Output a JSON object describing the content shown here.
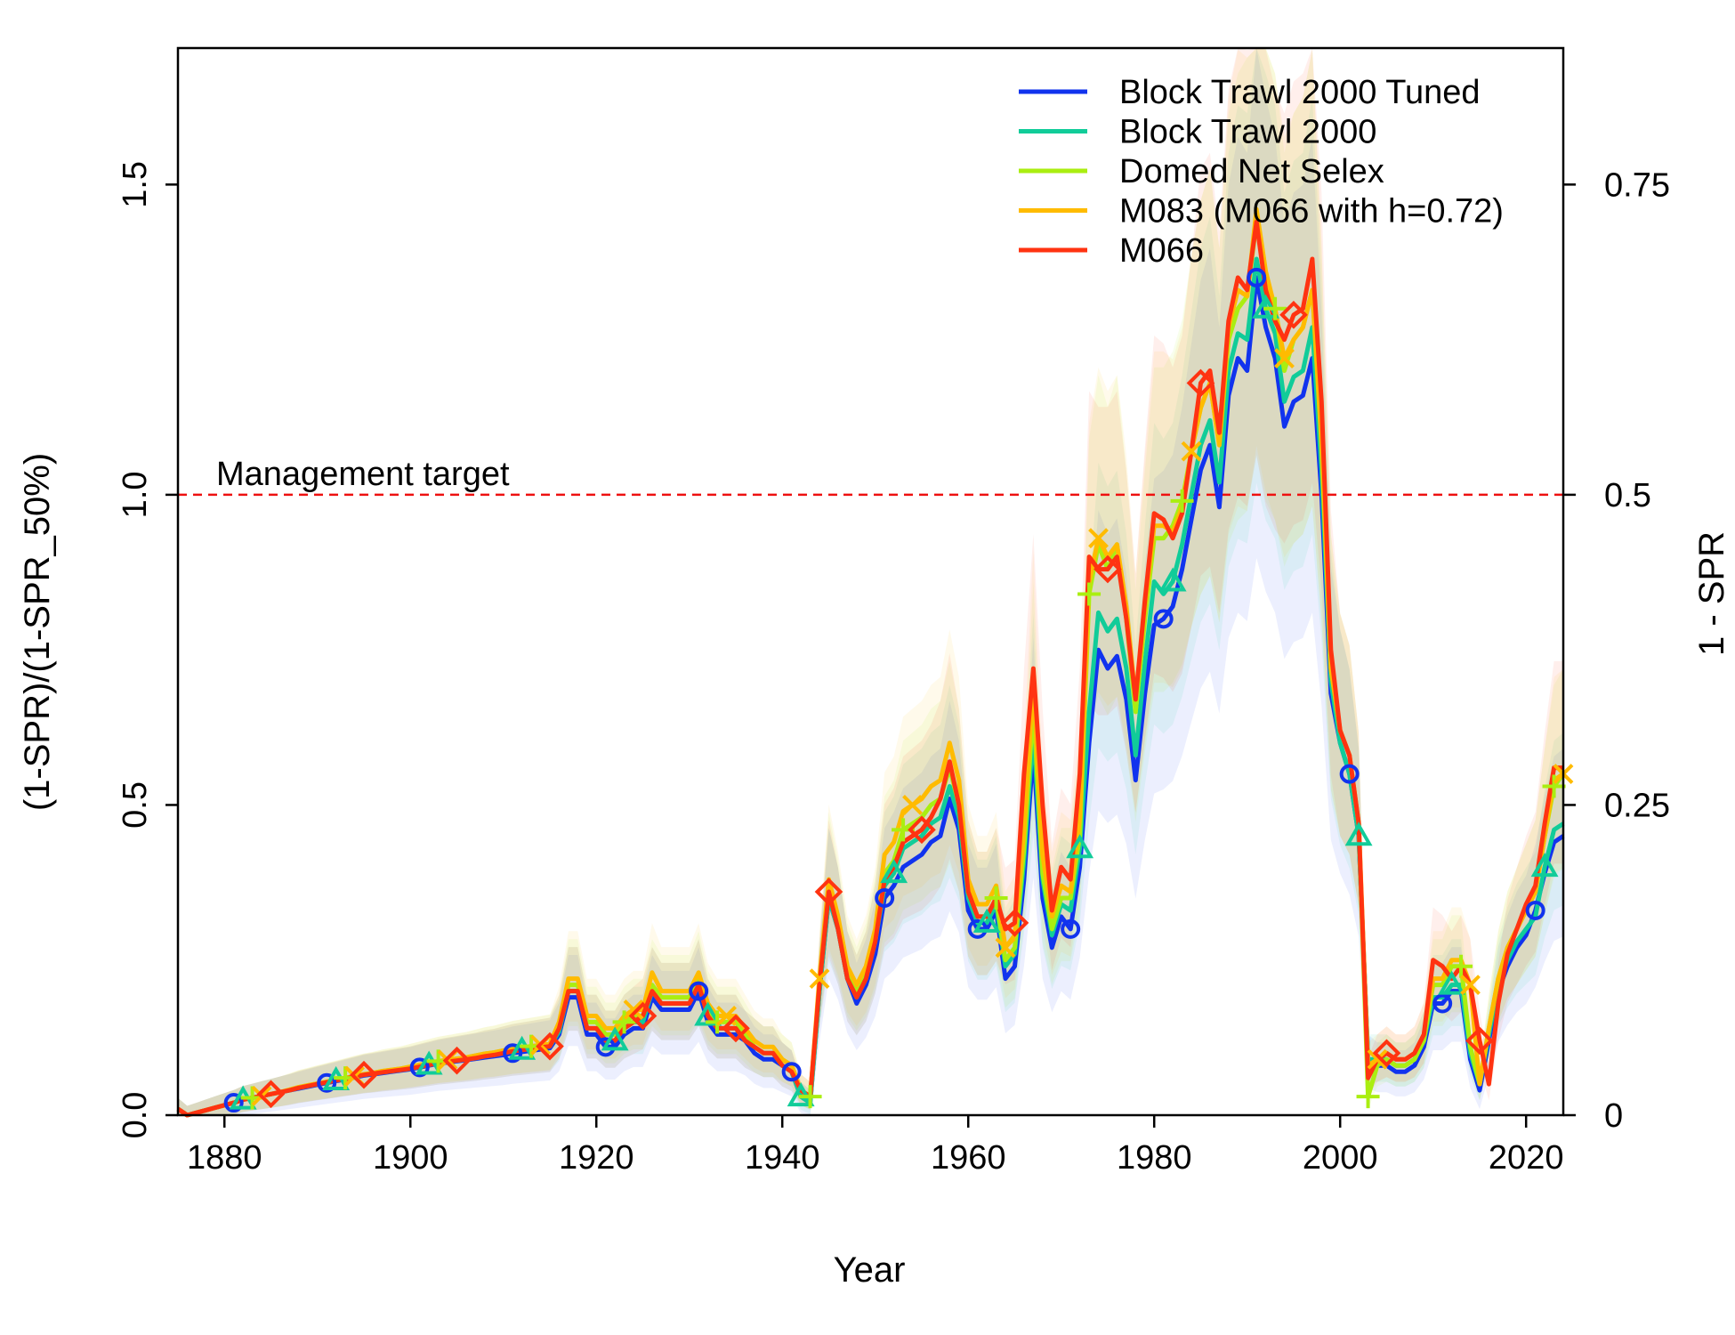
{
  "chart_data": {
    "type": "line",
    "xlabel": "Year",
    "ylabel": "(1-SPR)/(1-SPR_50%)",
    "ylabel_right": "1 - SPR",
    "xlim": [
      1875,
      2024
    ],
    "ylim": [
      0,
      1.72
    ],
    "x_ticks": [
      1880,
      1900,
      1920,
      1940,
      1960,
      1980,
      2000,
      2020
    ],
    "y_ticks": [
      0.0,
      0.5,
      1.0,
      1.5
    ],
    "y_tick_labels": [
      "0.0",
      "0.5",
      "1.0",
      "1.5"
    ],
    "y2_ticks": [
      0,
      0.25,
      0.5,
      0.75
    ],
    "y2_tick_labels": [
      "0",
      "0.25",
      "0.5",
      "0.75"
    ],
    "reference_line": {
      "y": 1.0,
      "label": "Management target",
      "color": "#ee1111"
    },
    "legend_position": "top-right",
    "x": [
      1875,
      1876,
      1877,
      1878,
      1879,
      1880,
      1881,
      1882,
      1883,
      1884,
      1885,
      1886,
      1887,
      1888,
      1889,
      1890,
      1891,
      1892,
      1893,
      1894,
      1895,
      1896,
      1897,
      1898,
      1899,
      1900,
      1901,
      1902,
      1903,
      1904,
      1905,
      1906,
      1907,
      1908,
      1909,
      1910,
      1911,
      1912,
      1913,
      1914,
      1915,
      1916,
      1917,
      1918,
      1919,
      1920,
      1921,
      1922,
      1923,
      1924,
      1925,
      1926,
      1927,
      1928,
      1929,
      1930,
      1931,
      1932,
      1933,
      1934,
      1935,
      1936,
      1937,
      1938,
      1939,
      1940,
      1941,
      1942,
      1943,
      1944,
      1945,
      1946,
      1947,
      1948,
      1949,
      1950,
      1951,
      1952,
      1953,
      1954,
      1955,
      1956,
      1957,
      1958,
      1959,
      1960,
      1961,
      1962,
      1963,
      1964,
      1965,
      1966,
      1967,
      1968,
      1969,
      1970,
      1971,
      1972,
      1973,
      1974,
      1975,
      1976,
      1977,
      1978,
      1979,
      1980,
      1981,
      1982,
      1983,
      1984,
      1985,
      1986,
      1987,
      1988,
      1989,
      1990,
      1991,
      1992,
      1993,
      1994,
      1995,
      1996,
      1997,
      1998,
      1999,
      2000,
      2001,
      2002,
      2003,
      2004,
      2005,
      2006,
      2007,
      2008,
      2009,
      2010,
      2011,
      2012,
      2013,
      2014,
      2015,
      2016,
      2017,
      2018,
      2019,
      2020,
      2021,
      2022,
      2023,
      2024
    ],
    "series": [
      {
        "name": "Block Trawl 2000 Tuned",
        "color": "#1133ee",
        "marker": "circle",
        "values": [
          0.01,
          0.0,
          0.004,
          0.008,
          0.012,
          0.016,
          0.02,
          0.025,
          0.028,
          0.031,
          0.034,
          0.037,
          0.04,
          0.043,
          0.046,
          0.049,
          0.052,
          0.055,
          0.058,
          0.061,
          0.064,
          0.066,
          0.068,
          0.07,
          0.072,
          0.074,
          0.077,
          0.08,
          0.083,
          0.085,
          0.087,
          0.089,
          0.091,
          0.093,
          0.095,
          0.097,
          0.1,
          0.102,
          0.104,
          0.106,
          0.108,
          0.13,
          0.19,
          0.19,
          0.13,
          0.13,
          0.11,
          0.11,
          0.13,
          0.14,
          0.14,
          0.19,
          0.17,
          0.17,
          0.17,
          0.17,
          0.2,
          0.15,
          0.13,
          0.13,
          0.13,
          0.12,
          0.1,
          0.09,
          0.09,
          0.08,
          0.07,
          0.03,
          0.02,
          0.2,
          0.35,
          0.3,
          0.22,
          0.18,
          0.21,
          0.26,
          0.35,
          0.37,
          0.4,
          0.41,
          0.42,
          0.44,
          0.45,
          0.51,
          0.46,
          0.33,
          0.3,
          0.3,
          0.33,
          0.22,
          0.24,
          0.38,
          0.59,
          0.35,
          0.27,
          0.32,
          0.3,
          0.4,
          0.6,
          0.75,
          0.72,
          0.74,
          0.67,
          0.54,
          0.68,
          0.79,
          0.8,
          0.82,
          0.88,
          0.96,
          1.04,
          1.08,
          0.98,
          1.16,
          1.22,
          1.2,
          1.35,
          1.27,
          1.22,
          1.11,
          1.15,
          1.16,
          1.22,
          1.0,
          0.68,
          0.6,
          0.55,
          0.45,
          0.09,
          0.08,
          0.08,
          0.07,
          0.07,
          0.08,
          0.11,
          0.18,
          0.18,
          0.2,
          0.2,
          0.09,
          0.04,
          0.12,
          0.2,
          0.24,
          0.27,
          0.29,
          0.33,
          0.39,
          0.44,
          0.45
        ]
      },
      {
        "name": "Block Trawl 2000",
        "color": "#11cc99",
        "marker": "triangle",
        "values": [
          0.01,
          0.0,
          0.004,
          0.008,
          0.012,
          0.016,
          0.02,
          0.025,
          0.028,
          0.031,
          0.034,
          0.037,
          0.04,
          0.044,
          0.047,
          0.05,
          0.053,
          0.056,
          0.059,
          0.062,
          0.065,
          0.067,
          0.069,
          0.071,
          0.073,
          0.075,
          0.078,
          0.081,
          0.084,
          0.086,
          0.088,
          0.09,
          0.092,
          0.095,
          0.097,
          0.1,
          0.103,
          0.105,
          0.107,
          0.109,
          0.111,
          0.135,
          0.2,
          0.2,
          0.14,
          0.14,
          0.12,
          0.12,
          0.14,
          0.15,
          0.15,
          0.2,
          0.18,
          0.18,
          0.18,
          0.18,
          0.21,
          0.16,
          0.14,
          0.14,
          0.14,
          0.12,
          0.11,
          0.1,
          0.1,
          0.08,
          0.07,
          0.03,
          0.02,
          0.2,
          0.35,
          0.3,
          0.22,
          0.19,
          0.22,
          0.28,
          0.37,
          0.39,
          0.43,
          0.44,
          0.45,
          0.47,
          0.48,
          0.53,
          0.48,
          0.35,
          0.31,
          0.31,
          0.34,
          0.24,
          0.26,
          0.41,
          0.62,
          0.38,
          0.29,
          0.34,
          0.33,
          0.43,
          0.65,
          0.81,
          0.78,
          0.8,
          0.72,
          0.58,
          0.73,
          0.86,
          0.84,
          0.86,
          0.92,
          1.0,
          1.08,
          1.12,
          1.02,
          1.2,
          1.26,
          1.25,
          1.38,
          1.3,
          1.26,
          1.15,
          1.19,
          1.2,
          1.27,
          1.04,
          0.7,
          0.6,
          0.55,
          0.45,
          0.09,
          0.09,
          0.09,
          0.08,
          0.08,
          0.09,
          0.12,
          0.19,
          0.19,
          0.21,
          0.21,
          0.1,
          0.05,
          0.13,
          0.21,
          0.25,
          0.28,
          0.3,
          0.32,
          0.4,
          0.46,
          0.47
        ]
      },
      {
        "name": "Domed Net Selex",
        "color": "#aaee11",
        "marker": "plus",
        "values": [
          0.01,
          0.0,
          0.004,
          0.008,
          0.012,
          0.016,
          0.02,
          0.025,
          0.028,
          0.031,
          0.034,
          0.037,
          0.041,
          0.045,
          0.048,
          0.051,
          0.054,
          0.057,
          0.06,
          0.063,
          0.066,
          0.068,
          0.071,
          0.073,
          0.075,
          0.078,
          0.081,
          0.084,
          0.087,
          0.089,
          0.091,
          0.093,
          0.096,
          0.099,
          0.101,
          0.104,
          0.107,
          0.109,
          0.111,
          0.113,
          0.115,
          0.14,
          0.21,
          0.21,
          0.15,
          0.15,
          0.13,
          0.13,
          0.15,
          0.16,
          0.16,
          0.21,
          0.19,
          0.19,
          0.19,
          0.19,
          0.22,
          0.17,
          0.15,
          0.15,
          0.15,
          0.13,
          0.11,
          0.1,
          0.1,
          0.09,
          0.08,
          0.04,
          0.03,
          0.21,
          0.37,
          0.31,
          0.23,
          0.2,
          0.23,
          0.29,
          0.39,
          0.41,
          0.46,
          0.47,
          0.48,
          0.5,
          0.51,
          0.56,
          0.5,
          0.36,
          0.32,
          0.32,
          0.35,
          0.25,
          0.27,
          0.43,
          0.66,
          0.39,
          0.3,
          0.35,
          0.35,
          0.45,
          0.84,
          0.92,
          0.88,
          0.92,
          0.8,
          0.65,
          0.8,
          0.93,
          0.93,
          0.95,
          0.99,
          1.07,
          1.14,
          1.18,
          1.08,
          1.25,
          1.3,
          1.32,
          1.44,
          1.34,
          1.3,
          1.2,
          1.25,
          1.27,
          1.33,
          1.08,
          0.72,
          0.62,
          0.58,
          0.47,
          0.03,
          0.08,
          0.09,
          0.08,
          0.08,
          0.09,
          0.12,
          0.21,
          0.21,
          0.24,
          0.24,
          0.11,
          0.05,
          0.14,
          0.22,
          0.27,
          0.3,
          0.33,
          0.36,
          0.45,
          0.53,
          0.55
        ]
      },
      {
        "name": "M083 (M066 with h=0.72)",
        "color": "#ffbb00",
        "marker": "cross",
        "values": [
          0.01,
          0.0,
          0.004,
          0.008,
          0.012,
          0.016,
          0.02,
          0.025,
          0.028,
          0.031,
          0.034,
          0.037,
          0.041,
          0.045,
          0.048,
          0.051,
          0.054,
          0.057,
          0.06,
          0.063,
          0.066,
          0.068,
          0.071,
          0.073,
          0.075,
          0.078,
          0.081,
          0.084,
          0.087,
          0.089,
          0.091,
          0.093,
          0.096,
          0.099,
          0.101,
          0.104,
          0.107,
          0.109,
          0.111,
          0.113,
          0.115,
          0.15,
          0.22,
          0.22,
          0.16,
          0.16,
          0.14,
          0.14,
          0.16,
          0.17,
          0.17,
          0.23,
          0.2,
          0.2,
          0.2,
          0.2,
          0.23,
          0.18,
          0.16,
          0.16,
          0.16,
          0.14,
          0.12,
          0.11,
          0.11,
          0.09,
          0.08,
          0.04,
          0.03,
          0.22,
          0.38,
          0.32,
          0.24,
          0.21,
          0.24,
          0.3,
          0.42,
          0.44,
          0.49,
          0.5,
          0.51,
          0.53,
          0.54,
          0.6,
          0.54,
          0.38,
          0.34,
          0.34,
          0.37,
          0.27,
          0.29,
          0.46,
          0.7,
          0.42,
          0.32,
          0.37,
          0.36,
          0.48,
          0.86,
          0.93,
          0.9,
          0.92,
          0.82,
          0.67,
          0.82,
          0.95,
          0.95,
          0.94,
          0.98,
          1.07,
          1.14,
          1.18,
          1.08,
          1.27,
          1.33,
          1.32,
          1.46,
          1.36,
          1.3,
          1.22,
          1.25,
          1.27,
          1.33,
          1.09,
          0.72,
          0.62,
          0.58,
          0.47,
          0.08,
          0.09,
          0.1,
          0.09,
          0.09,
          0.1,
          0.13,
          0.22,
          0.22,
          0.25,
          0.25,
          0.21,
          0.05,
          0.14,
          0.22,
          0.27,
          0.3,
          0.33,
          0.36,
          0.45,
          0.54,
          0.55
        ]
      },
      {
        "name": "M066",
        "color": "#ff3311",
        "marker": "diamond",
        "values": [
          0.01,
          0.0,
          0.004,
          0.008,
          0.012,
          0.016,
          0.02,
          0.025,
          0.028,
          0.031,
          0.034,
          0.037,
          0.04,
          0.044,
          0.047,
          0.05,
          0.053,
          0.056,
          0.059,
          0.062,
          0.065,
          0.067,
          0.069,
          0.071,
          0.073,
          0.075,
          0.078,
          0.081,
          0.084,
          0.086,
          0.088,
          0.09,
          0.092,
          0.095,
          0.097,
          0.1,
          0.103,
          0.105,
          0.107,
          0.109,
          0.111,
          0.14,
          0.2,
          0.2,
          0.14,
          0.14,
          0.12,
          0.12,
          0.14,
          0.15,
          0.16,
          0.2,
          0.18,
          0.18,
          0.18,
          0.18,
          0.21,
          0.16,
          0.14,
          0.14,
          0.14,
          0.12,
          0.11,
          0.1,
          0.1,
          0.08,
          0.07,
          0.04,
          0.03,
          0.21,
          0.36,
          0.3,
          0.22,
          0.19,
          0.22,
          0.28,
          0.38,
          0.4,
          0.44,
          0.45,
          0.46,
          0.48,
          0.51,
          0.57,
          0.5,
          0.36,
          0.32,
          0.32,
          0.35,
          0.3,
          0.31,
          0.55,
          0.72,
          0.5,
          0.33,
          0.4,
          0.38,
          0.55,
          0.9,
          0.88,
          0.88,
          0.9,
          0.8,
          0.67,
          0.83,
          0.97,
          0.96,
          0.93,
          0.97,
          1.07,
          1.18,
          1.2,
          1.1,
          1.28,
          1.35,
          1.33,
          1.44,
          1.33,
          1.28,
          1.25,
          1.29,
          1.3,
          1.38,
          1.15,
          0.75,
          0.62,
          0.58,
          0.47,
          0.06,
          0.09,
          0.1,
          0.09,
          0.09,
          0.1,
          0.13,
          0.25,
          0.24,
          0.22,
          0.24,
          0.21,
          0.12,
          0.05,
          0.18,
          0.26,
          0.3,
          0.34,
          0.37,
          0.47,
          0.56,
          0.56
        ]
      }
    ]
  }
}
